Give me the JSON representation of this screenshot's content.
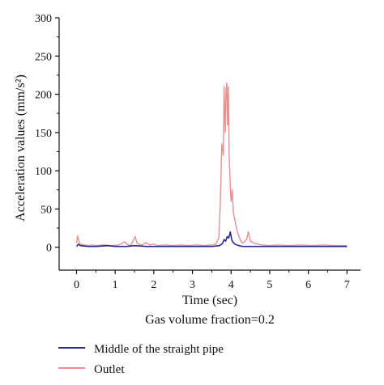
{
  "chart_data": {
    "type": "line",
    "title": "",
    "xlabel": "Time (sec)",
    "ylabel": "Acceleration values (mm/s²)",
    "caption": "Gas volume fraction=0.2",
    "xlim": [
      -0.45,
      7.35
    ],
    "ylim": [
      -30,
      300
    ],
    "xticks": [
      0,
      1,
      2,
      3,
      4,
      5,
      6,
      7
    ],
    "yticks": [
      0,
      50,
      100,
      150,
      200,
      250,
      300
    ],
    "grid": false,
    "legend_position": "bottom",
    "series": [
      {
        "name": "Outlet",
        "color": "#e8908f",
        "x": [
          0.0,
          0.03,
          0.06,
          0.1,
          0.2,
          0.3,
          0.4,
          0.5,
          0.7,
          0.9,
          1.1,
          1.25,
          1.3,
          1.4,
          1.48,
          1.52,
          1.56,
          1.6,
          1.7,
          1.8,
          1.9,
          2.0,
          2.1,
          2.3,
          2.5,
          2.7,
          2.9,
          3.1,
          3.3,
          3.5,
          3.6,
          3.68,
          3.72,
          3.76,
          3.8,
          3.82,
          3.85,
          3.87,
          3.89,
          3.91,
          3.93,
          3.95,
          3.98,
          4.0,
          4.03,
          4.06,
          4.1,
          4.15,
          4.2,
          4.25,
          4.3,
          4.4,
          4.45,
          4.5,
          4.6,
          4.8,
          5.0,
          5.2,
          5.5,
          5.8,
          6.1,
          6.4,
          6.7,
          7.0
        ],
        "y": [
          5,
          15,
          8,
          4,
          3,
          2,
          3,
          2,
          3,
          2,
          3,
          7,
          4,
          2,
          10,
          14,
          6,
          4,
          3,
          6,
          3,
          4,
          2,
          3,
          2,
          3,
          2,
          3,
          2,
          3,
          4,
          12,
          55,
          135,
          120,
          210,
          150,
          205,
          215,
          160,
          210,
          120,
          80,
          60,
          75,
          45,
          35,
          22,
          15,
          8,
          5,
          10,
          20,
          8,
          5,
          3,
          2,
          3,
          2,
          3,
          2,
          3,
          2,
          2
        ]
      },
      {
        "name": "Middle of the straight pipe",
        "color": "#2a2a8c",
        "x": [
          0.0,
          0.05,
          0.1,
          0.3,
          0.5,
          0.8,
          1.0,
          1.3,
          1.5,
          1.8,
          2.0,
          2.5,
          3.0,
          3.5,
          3.7,
          3.78,
          3.82,
          3.86,
          3.9,
          3.94,
          3.98,
          4.02,
          4.06,
          4.1,
          4.15,
          4.2,
          4.3,
          4.5,
          5.0,
          5.5,
          6.0,
          6.5,
          7.0
        ],
        "y": [
          1,
          4,
          2,
          1,
          1,
          2,
          1,
          1,
          2,
          1,
          1,
          1,
          1,
          1,
          2,
          5,
          10,
          8,
          14,
          12,
          20,
          9,
          6,
          4,
          3,
          2,
          1,
          1,
          1,
          1,
          1,
          1,
          1
        ]
      }
    ]
  }
}
